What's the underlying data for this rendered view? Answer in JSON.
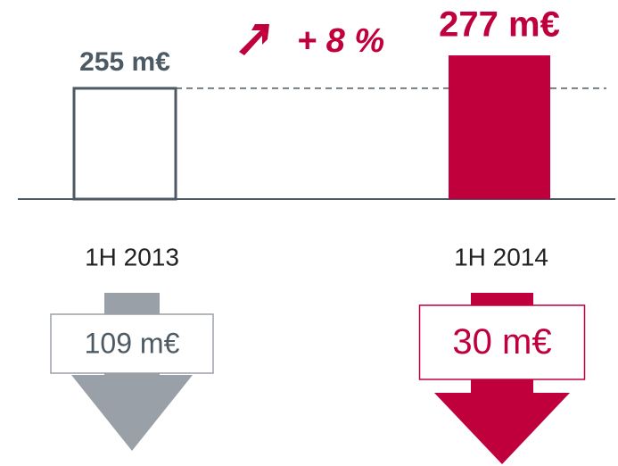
{
  "chart_data": {
    "type": "bar",
    "categories": [
      "1H 2013",
      "1H 2014"
    ],
    "values": [
      255,
      277
    ],
    "value_labels": [
      "255 m€",
      "277 m€"
    ],
    "colors": [
      "#4d5a63",
      "#c0003c"
    ],
    "filled": [
      false,
      true
    ],
    "ylim": [
      181,
      314
    ],
    "annotation": "+ 8 %",
    "flows": {
      "values": [
        109,
        30
      ],
      "value_labels": [
        "109 m€",
        "30 m€"
      ],
      "colors": [
        "#9aa0a8",
        "#c0003c"
      ]
    }
  }
}
